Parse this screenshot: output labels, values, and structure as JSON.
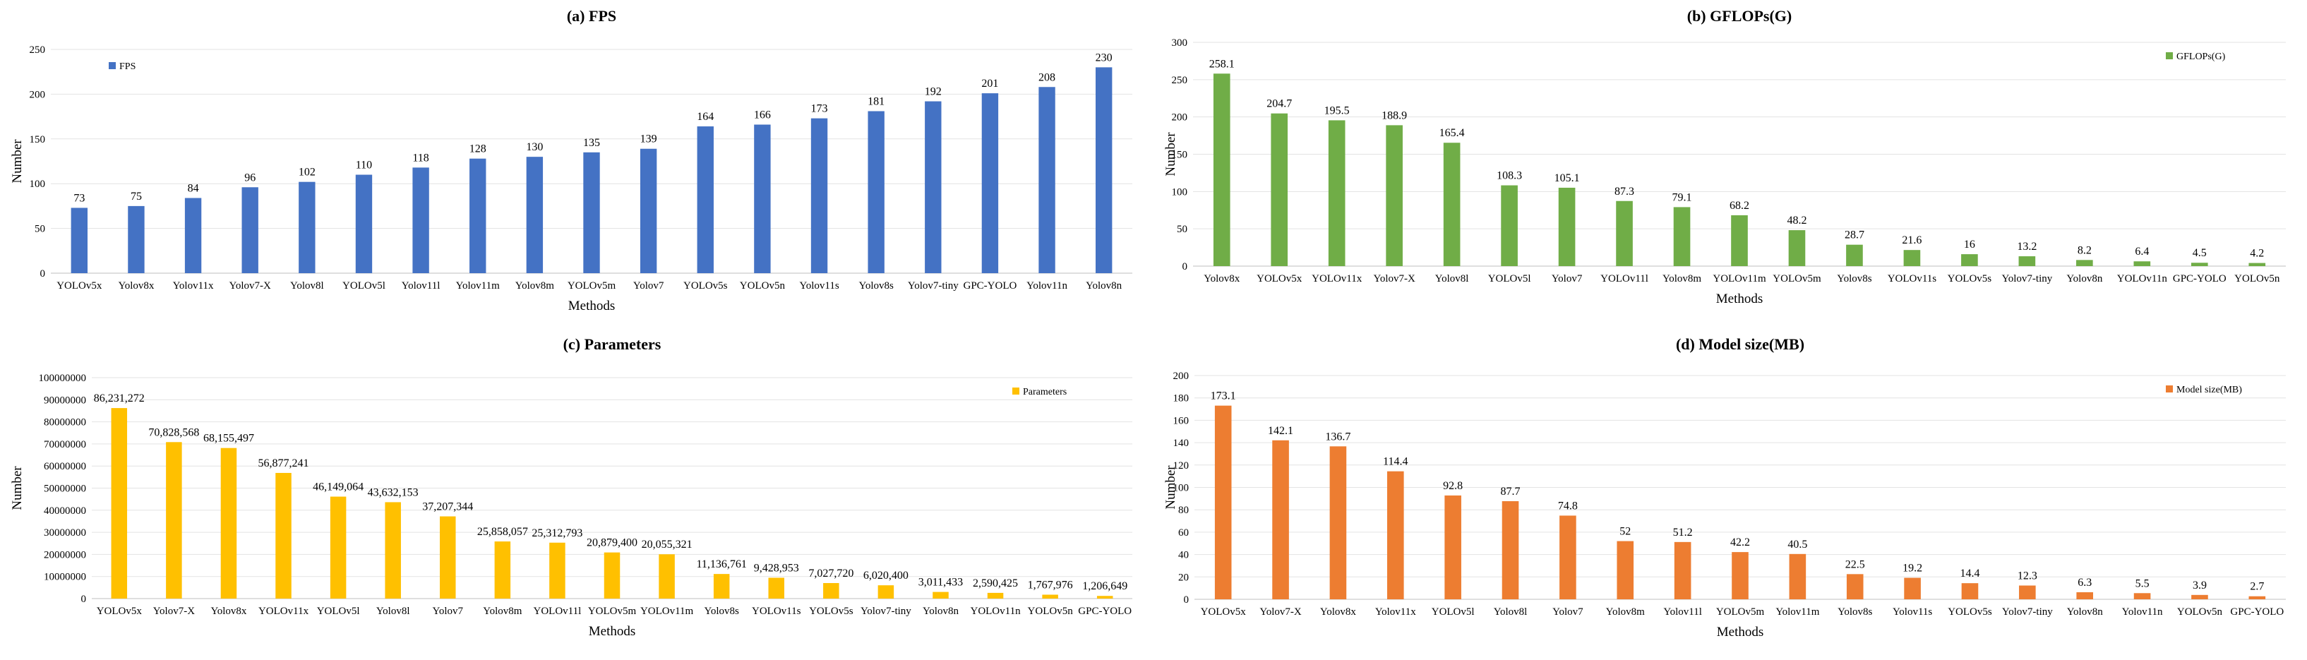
{
  "chart_data": [
    {
      "type": "bar",
      "title": "(a) FPS",
      "xlabel": "Methods",
      "ylabel": "Number",
      "ylim": [
        0,
        250
      ],
      "yticks": [
        0,
        50,
        100,
        150,
        200,
        250
      ],
      "ytick_labels": [
        "0",
        "50",
        "100",
        "150",
        "200",
        "250"
      ],
      "legend": "FPS",
      "legend_position": "top-left",
      "color": "#4472C4",
      "categories": [
        "YOLOv5x",
        "Yolov8x",
        "Yolov11x",
        "Yolov7-X",
        "Yolov8l",
        "YOLOv5l",
        "Yolov11l",
        "Yolov11m",
        "Yolov8m",
        "YOLOv5m",
        "Yolov7",
        "YOLOv5s",
        "YOLOv5n",
        "Yolov11s",
        "Yolov8s",
        "Yolov7-tiny",
        "GPC-YOLO",
        "Yolov11n",
        "Yolov8n"
      ],
      "values": [
        73,
        75,
        84,
        96,
        102,
        110,
        118,
        128,
        130,
        135,
        139,
        164,
        166,
        173,
        181,
        192,
        201,
        208,
        230
      ],
      "value_labels": [
        "73",
        "75",
        "84",
        "96",
        "102",
        "110",
        "118",
        "128",
        "130",
        "135",
        "139",
        "164",
        "166",
        "173",
        "181",
        "192",
        "201",
        "208",
        "230"
      ]
    },
    {
      "type": "bar",
      "title": "(b) GFLOPs(G)",
      "xlabel": "Methods",
      "ylabel": "Number",
      "ylim": [
        0,
        300
      ],
      "yticks": [
        0,
        50,
        100,
        150,
        200,
        250,
        300
      ],
      "ytick_labels": [
        "0",
        "50",
        "100",
        "150",
        "200",
        "250",
        "300"
      ],
      "legend": "GFLOPs(G)",
      "legend_position": "top-right",
      "color": "#70AD47",
      "categories": [
        "Yolov8x",
        "YOLOv5x",
        "YOLOv11x",
        "Yolov7-X",
        "Yolov8l",
        "YOLOv5l",
        "Yolov7",
        "YOLOv11l",
        "Yolov8m",
        "YOLOv11m",
        "YOLOv5m",
        "Yolov8s",
        "YOLOv11s",
        "YOLOv5s",
        "Yolov7-tiny",
        "Yolov8n",
        "YOLOv11n",
        "GPC-YOLO",
        "YOLOv5n"
      ],
      "values": [
        258.1,
        204.7,
        195.5,
        188.9,
        165.4,
        108.3,
        105.1,
        87.3,
        79.1,
        68.2,
        48.2,
        28.7,
        21.6,
        16,
        13.2,
        8.2,
        6.4,
        4.5,
        4.2
      ],
      "value_labels": [
        "258.1",
        "204.7",
        "195.5",
        "188.9",
        "165.4",
        "108.3",
        "105.1",
        "87.3",
        "79.1",
        "68.2",
        "48.2",
        "28.7",
        "21.6",
        "16",
        "13.2",
        "8.2",
        "6.4",
        "4.5",
        "4.2"
      ]
    },
    {
      "type": "bar",
      "title": "(c) Parameters",
      "xlabel": "Methods",
      "ylabel": "Number",
      "ylim": [
        0,
        100000000
      ],
      "yticks": [
        0,
        10000000,
        20000000,
        30000000,
        40000000,
        50000000,
        60000000,
        70000000,
        80000000,
        90000000,
        100000000
      ],
      "ytick_labels": [
        "0",
        "10000000",
        "20000000",
        "30000000",
        "40000000",
        "50000000",
        "60000000",
        "70000000",
        "80000000",
        "90000000",
        "100000000"
      ],
      "legend": "Parameters",
      "legend_position": "top-right",
      "color": "#FFC000",
      "categories": [
        "YOLOv5x",
        "Yolov7-X",
        "Yolov8x",
        "YOLOv11x",
        "YOLOv5l",
        "Yolov8l",
        "Yolov7",
        "Yolov8m",
        "YOLOv11l",
        "YOLOv5m",
        "YOLOv11m",
        "Yolov8s",
        "YOLOv11s",
        "YOLOv5s",
        "Yolov7-tiny",
        "Yolov8n",
        "YOLOv11n",
        "YOLOv5n",
        "GPC-YOLO"
      ],
      "values": [
        86231272,
        70828568,
        68155497,
        56877241,
        46149064,
        43632153,
        37207344,
        25858057,
        25312793,
        20879400,
        20055321,
        11136761,
        9428953,
        7027720,
        6020400,
        3011433,
        2590425,
        1767976,
        1206649
      ],
      "value_labels": [
        "86,231,272",
        "70,828,568",
        "68,155,497",
        "56,877,241",
        "46,149,064",
        "43,632,153",
        "37,207,344",
        "25,858,057",
        "25,312,793",
        "20,879,400",
        "20,055,321",
        "11,136,761",
        "9,428,953",
        "7,027,720",
        "6,020,400",
        "3,011,433",
        "2,590,425",
        "1,767,976",
        "1,206,649"
      ]
    },
    {
      "type": "bar",
      "title": "(d) Model size(MB)",
      "xlabel": "Methods",
      "ylabel": "Number",
      "ylim": [
        0,
        200
      ],
      "yticks": [
        0,
        20,
        40,
        60,
        80,
        100,
        120,
        140,
        160,
        180,
        200
      ],
      "ytick_labels": [
        "0",
        "20",
        "40",
        "60",
        "80",
        "100",
        "120",
        "140",
        "160",
        "180",
        "200"
      ],
      "legend": "Model size(MB)",
      "legend_position": "top-right",
      "color": "#ED7D31",
      "categories": [
        "YOLOv5x",
        "Yolov7-X",
        "Yolov8x",
        "Yolov11x",
        "YOLOv5l",
        "Yolov8l",
        "Yolov7",
        "Yolov8m",
        "Yolov11l",
        "YOLOv5m",
        "Yolov11m",
        "Yolov8s",
        "Yolov11s",
        "YOLOv5s",
        "Yolov7-tiny",
        "Yolov8n",
        "Yolov11n",
        "YOLOv5n",
        "GPC-YOLO"
      ],
      "values": [
        173.1,
        142.1,
        136.7,
        114.4,
        92.8,
        87.7,
        74.8,
        52,
        51.2,
        42.2,
        40.5,
        22.5,
        19.2,
        14.4,
        12.3,
        6.3,
        5.5,
        3.9,
        2.7
      ],
      "value_labels": [
        "173.1",
        "142.1",
        "136.7",
        "114.4",
        "92.8",
        "87.7",
        "74.8",
        "52",
        "51.2",
        "42.2",
        "40.5",
        "22.5",
        "19.2",
        "14.4",
        "12.3",
        "6.3",
        "5.5",
        "3.9",
        "2.7"
      ]
    }
  ]
}
